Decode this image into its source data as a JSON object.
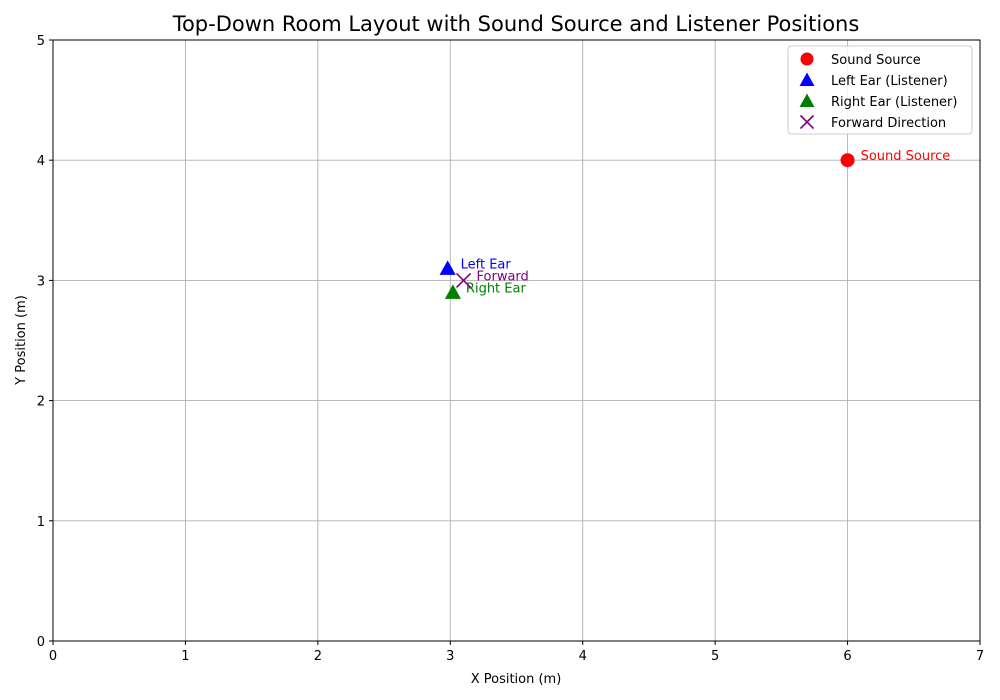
{
  "chart_data": {
    "type": "scatter",
    "title": "Top-Down Room Layout with Sound Source and Listener Positions",
    "xlabel": "X Position (m)",
    "ylabel": "Y Position (m)",
    "xlim": [
      0,
      7
    ],
    "ylim": [
      0,
      5
    ],
    "xticks": [
      "0",
      "1",
      "2",
      "3",
      "4",
      "5",
      "6",
      "7"
    ],
    "yticks": [
      "0",
      "1",
      "2",
      "3",
      "4",
      "5"
    ],
    "grid": true,
    "legend_position": "top-right",
    "series": [
      {
        "name": "Sound Source",
        "marker": "circle",
        "color": "#ff0000",
        "points": [
          {
            "x": 6.0,
            "y": 4.0,
            "label": "Sound Source"
          }
        ]
      },
      {
        "name": "Left Ear (Listener)",
        "marker": "triangle",
        "color": "#0000ff",
        "points": [
          {
            "x": 2.98,
            "y": 3.1,
            "label": "Left Ear"
          }
        ]
      },
      {
        "name": "Right Ear (Listener)",
        "marker": "triangle",
        "color": "#008000",
        "points": [
          {
            "x": 3.02,
            "y": 2.9,
            "label": "Right Ear"
          }
        ]
      },
      {
        "name": "Forward Direction",
        "marker": "x",
        "color": "#800080",
        "points": [
          {
            "x": 3.1,
            "y": 3.0,
            "label": "Forward"
          }
        ]
      }
    ]
  }
}
